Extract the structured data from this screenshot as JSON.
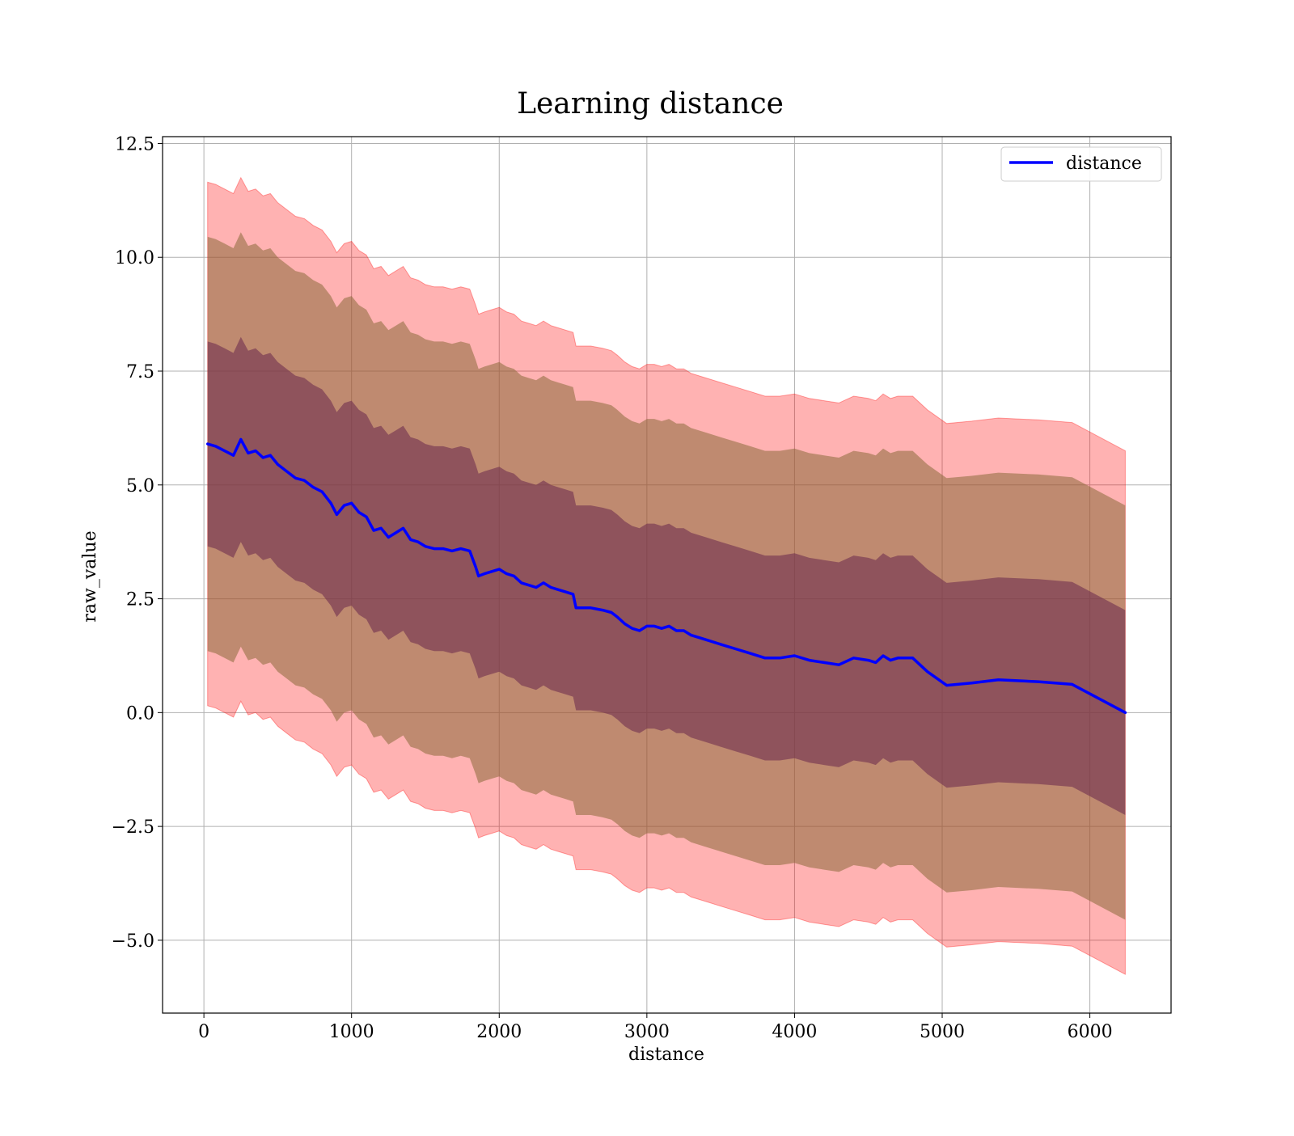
{
  "chart_data": {
    "type": "line",
    "title": "Learning distance",
    "xlabel": "distance",
    "ylabel": "raw_value",
    "xlim": [
      -280,
      6550
    ],
    "ylim": [
      -6.6,
      12.65
    ],
    "xticks": [
      0,
      1000,
      2000,
      3000,
      4000,
      5000,
      6000
    ],
    "xtick_labels": [
      "0",
      "1000",
      "2000",
      "3000",
      "4000",
      "5000",
      "6000"
    ],
    "yticks": [
      12.5,
      10.0,
      7.5,
      5.0,
      2.5,
      0.0,
      -2.5,
      -5.0
    ],
    "ytick_labels": [
      "12.5",
      "10.0",
      "7.5",
      "5.0",
      "2.5",
      "0.0",
      "−2.5",
      "−5.0"
    ],
    "grid": true,
    "legend_position": "top-right",
    "band_widths": {
      "inner": 2.25,
      "middle": 4.55,
      "outer": 5.75
    },
    "colors": {
      "line": "#0000ff",
      "band": "#ff0000",
      "band_inner_overlay": "#6f2f4f",
      "band_middle_overlay": "#8a6a3a",
      "grid": "#b0b0b0"
    },
    "series": [
      {
        "name": "distance",
        "x": [
          25,
          80,
          140,
          200,
          250,
          300,
          350,
          400,
          450,
          500,
          560,
          620,
          680,
          740,
          800,
          860,
          900,
          950,
          1000,
          1050,
          1100,
          1150,
          1200,
          1250,
          1300,
          1350,
          1400,
          1450,
          1500,
          1560,
          1620,
          1680,
          1740,
          1800,
          1840,
          1860,
          1900,
          1950,
          2000,
          2050,
          2100,
          2150,
          2200,
          2250,
          2300,
          2350,
          2400,
          2450,
          2500,
          2520,
          2560,
          2620,
          2700,
          2760,
          2800,
          2850,
          2900,
          2950,
          3000,
          3050,
          3100,
          3150,
          3200,
          3250,
          3300,
          3400,
          3500,
          3600,
          3700,
          3800,
          3900,
          4000,
          4100,
          4200,
          4300,
          4400,
          4500,
          4550,
          4600,
          4650,
          4700,
          4800,
          4900,
          5030,
          5200,
          5380,
          5650,
          5880,
          6240
        ],
        "values": [
          5.9,
          5.85,
          5.75,
          5.65,
          6.0,
          5.7,
          5.75,
          5.6,
          5.65,
          5.45,
          5.3,
          5.15,
          5.1,
          4.95,
          4.85,
          4.6,
          4.35,
          4.55,
          4.6,
          4.4,
          4.3,
          4.0,
          4.05,
          3.85,
          3.95,
          4.05,
          3.8,
          3.75,
          3.65,
          3.6,
          3.6,
          3.55,
          3.6,
          3.55,
          3.2,
          3.0,
          3.05,
          3.1,
          3.15,
          3.05,
          3.0,
          2.85,
          2.8,
          2.75,
          2.85,
          2.75,
          2.7,
          2.65,
          2.6,
          2.3,
          2.3,
          2.3,
          2.25,
          2.2,
          2.1,
          1.95,
          1.85,
          1.8,
          1.9,
          1.9,
          1.85,
          1.9,
          1.8,
          1.8,
          1.7,
          1.6,
          1.5,
          1.4,
          1.3,
          1.2,
          1.2,
          1.25,
          1.15,
          1.1,
          1.05,
          1.2,
          1.15,
          1.1,
          1.25,
          1.15,
          1.2,
          1.2,
          0.9,
          0.6,
          0.65,
          0.72,
          0.68,
          0.62,
          0.0
        ]
      }
    ]
  }
}
